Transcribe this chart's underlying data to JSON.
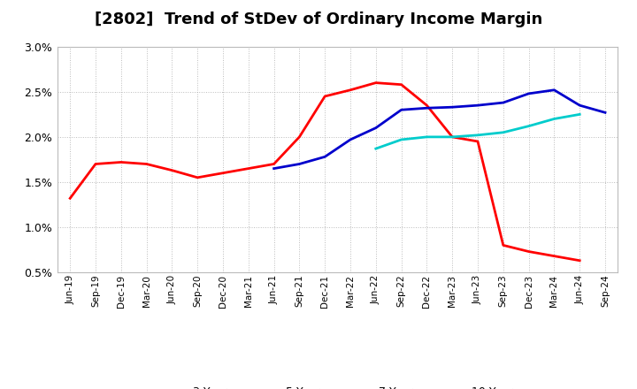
{
  "title": "[2802]  Trend of StDev of Ordinary Income Margin",
  "x_labels": [
    "Jun-19",
    "Sep-19",
    "Dec-19",
    "Mar-20",
    "Jun-20",
    "Sep-20",
    "Dec-20",
    "Mar-21",
    "Jun-21",
    "Sep-21",
    "Dec-21",
    "Mar-22",
    "Jun-22",
    "Sep-22",
    "Dec-22",
    "Mar-23",
    "Jun-23",
    "Sep-23",
    "Dec-23",
    "Mar-24",
    "Jun-24",
    "Sep-24"
  ],
  "series": {
    "3 Years": {
      "color": "#FF0000",
      "values": [
        1.32,
        1.7,
        1.72,
        1.7,
        1.63,
        1.55,
        1.6,
        1.65,
        1.7,
        2.0,
        2.45,
        2.52,
        2.6,
        2.58,
        2.35,
        2.0,
        1.95,
        0.8,
        0.73,
        0.68,
        0.63,
        null
      ]
    },
    "5 Years": {
      "color": "#0000CC",
      "values": [
        null,
        null,
        null,
        null,
        null,
        null,
        null,
        null,
        1.65,
        1.7,
        1.78,
        1.97,
        2.1,
        2.3,
        2.32,
        2.33,
        2.35,
        2.38,
        2.48,
        2.52,
        2.35,
        2.27
      ]
    },
    "7 Years": {
      "color": "#00CCCC",
      "values": [
        null,
        null,
        null,
        null,
        null,
        null,
        null,
        null,
        null,
        null,
        null,
        null,
        1.87,
        1.97,
        2.0,
        2.0,
        2.02,
        2.05,
        2.12,
        2.2,
        2.25,
        null
      ]
    },
    "10 Years": {
      "color": "#008000",
      "values": [
        null,
        null,
        null,
        null,
        null,
        null,
        null,
        null,
        null,
        null,
        null,
        null,
        null,
        null,
        null,
        null,
        null,
        null,
        null,
        null,
        null,
        null
      ]
    }
  },
  "ylim_min": 0.5,
  "ylim_max": 3.0,
  "yticks": [
    0.5,
    1.0,
    1.5,
    2.0,
    2.5,
    3.0
  ],
  "ytick_labels": [
    "0.5%",
    "1.0%",
    "1.5%",
    "2.0%",
    "2.5%",
    "3.0%"
  ],
  "background_color": "#FFFFFF",
  "grid_color": "#AAAAAA",
  "title_fontsize": 13
}
